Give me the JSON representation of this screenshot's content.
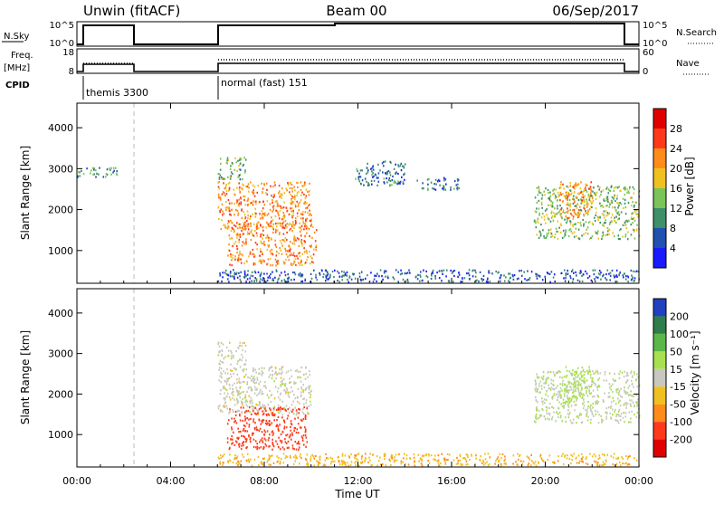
{
  "header": {
    "title_left": "Unwin (fitACF)",
    "title_center": "Beam 00",
    "title_right": "06/Sep/2017"
  },
  "top_panels": {
    "nsky_label": "N.Sky",
    "nsearch_label": "N.Search",
    "nsky_ticks": [
      "10^5",
      "10^0"
    ],
    "freq_label": "Freq.",
    "freq_unit": "[MHz]",
    "freq_ticks": [
      "18",
      "8"
    ],
    "nave_label": "Nave",
    "nave_ticks": [
      "60",
      "0"
    ],
    "cpid_label": "CPID",
    "cpid_entries": [
      {
        "start": "00:00",
        "text": "themis 3300"
      },
      {
        "start": "06:00",
        "text": "normal (fast) 151"
      }
    ],
    "data_gap": [
      "02:15",
      "06:00"
    ]
  },
  "chart_data": [
    {
      "type": "heatmap",
      "name": "power",
      "ylabel": "Slant Range [km]",
      "y_ticks": [
        "4000",
        "3000",
        "2000",
        "1000"
      ],
      "ylim": [
        200,
        4600
      ],
      "xlim": [
        "00:00",
        "24:00"
      ],
      "colorbar_title": "Power [dB]",
      "colorbar_ticks": [
        "28",
        "24",
        "20",
        "16",
        "12",
        "8",
        "4"
      ],
      "colorbar_range": [
        0,
        32
      ],
      "colors": [
        "#1a1aff",
        "#2050b0",
        "#3f8f6a",
        "#7ac45a",
        "#f0c020",
        "#ff8c1a",
        "#ff3a1a",
        "#e00000"
      ],
      "regions": [
        {
          "t": [
            6.0,
            10.0
          ],
          "r": [
            1500,
            2700
          ],
          "p": 22
        },
        {
          "t": [
            6.4,
            10.2
          ],
          "r": [
            650,
            1700
          ],
          "p": 22
        },
        {
          "t": [
            6.0,
            7.2
          ],
          "r": [
            2750,
            3300
          ],
          "p": 12
        },
        {
          "t": [
            11.8,
            14.0
          ],
          "r": [
            2600,
            3200
          ],
          "p": 8
        },
        {
          "t": [
            14.5,
            16.3
          ],
          "r": [
            2500,
            2800
          ],
          "p": 8
        },
        {
          "t": [
            19.5,
            24.0
          ],
          "r": [
            1300,
            2600
          ],
          "p": 14
        },
        {
          "t": [
            20.6,
            22.0
          ],
          "r": [
            1800,
            2700
          ],
          "p": 22
        },
        {
          "t": [
            0.0,
            1.8
          ],
          "r": [
            2800,
            3050
          ],
          "p": 10
        },
        {
          "t": [
            6.0,
            24.0
          ],
          "r": [
            250,
            550
          ],
          "p": 6
        }
      ]
    },
    {
      "type": "heatmap",
      "name": "velocity",
      "ylabel": "Slant Range [km]",
      "y_ticks": [
        "4000",
        "3000",
        "2000",
        "1000"
      ],
      "ylim": [
        200,
        4600
      ],
      "xlim": [
        "00:00",
        "24:00"
      ],
      "x_ticks": [
        "00:00",
        "04:00",
        "08:00",
        "12:00",
        "16:00",
        "20:00",
        "00:00"
      ],
      "xlabel": "Time UT",
      "colorbar_title": "Velocity [m s⁻¹]",
      "colorbar_ticks": [
        "200",
        "100",
        "50",
        "15",
        "-15",
        "-50",
        "-100",
        "-200"
      ],
      "colors": [
        "#2040c0",
        "#2e7d4a",
        "#5ab84a",
        "#a8e050",
        "#c8c8c0",
        "#f0c020",
        "#ff8c1a",
        "#ff3a1a",
        "#e00000"
      ],
      "regions": [
        {
          "t": [
            6.0,
            10.0
          ],
          "r": [
            1500,
            2700
          ],
          "v": 0
        },
        {
          "t": [
            6.4,
            9.8
          ],
          "r": [
            650,
            1700
          ],
          "v": -120
        },
        {
          "t": [
            6.0,
            7.2
          ],
          "r": [
            2750,
            3300
          ],
          "v": 0
        },
        {
          "t": [
            19.5,
            24.0
          ],
          "r": [
            1300,
            2600
          ],
          "v": 10
        },
        {
          "t": [
            20.6,
            22.0
          ],
          "r": [
            1800,
            2700
          ],
          "v": 30
        },
        {
          "t": [
            6.0,
            24.0
          ],
          "r": [
            250,
            550
          ],
          "v": -40
        }
      ]
    }
  ]
}
